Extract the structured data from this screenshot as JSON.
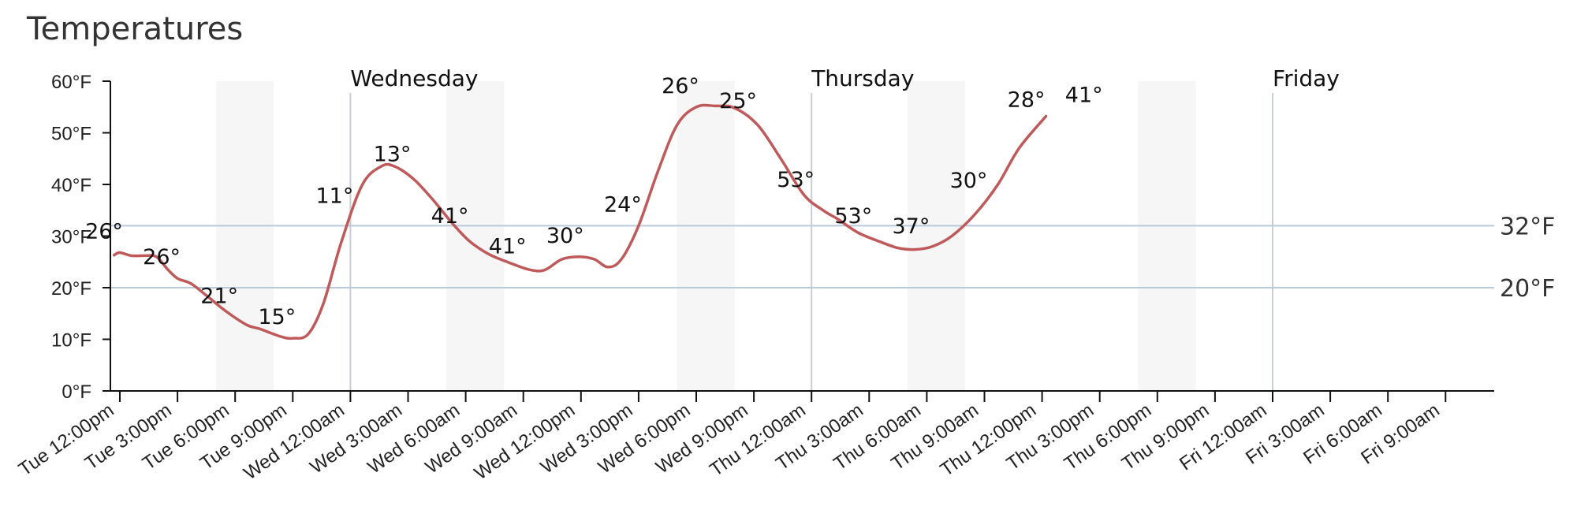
{
  "chart_data": {
    "type": "line",
    "title": "Temperatures",
    "xlabel": "",
    "ylabel": "",
    "x_start": "Tue 12:00pm",
    "x_step_hours": 3,
    "categories": [
      "Tue 12:00pm",
      "Tue 3:00pm",
      "Tue 6:00pm",
      "Tue 9:00pm",
      "Wed 12:00am",
      "Wed 3:00am",
      "Wed 6:00am",
      "Wed 9:00am",
      "Wed 12:00pm",
      "Wed 3:00pm",
      "Wed 6:00pm",
      "Wed 9:00pm",
      "Thu 12:00am",
      "Thu 3:00am",
      "Thu 6:00am",
      "Thu 9:00am",
      "Thu 12:00pm",
      "Thu 3:00pm",
      "Thu 6:00pm",
      "Thu 9:00pm",
      "Fri 12:00am",
      "Fri 3:00am",
      "Fri 6:00am",
      "Fri 9:00am"
    ],
    "y_ticks": [
      "0°F",
      "10°F",
      "20°F",
      "30°F",
      "40°F",
      "50°F",
      "60°F"
    ],
    "ylim": [
      0,
      60
    ],
    "series": [
      {
        "name": "",
        "color": "#c0595a",
        "curve": [
          [
            11.7,
            26.3
          ],
          [
            12.0,
            26.8
          ],
          [
            12.6,
            26.2
          ],
          [
            13.3,
            26.2
          ],
          [
            13.9,
            26.0
          ],
          [
            14.5,
            23.5
          ],
          [
            15.0,
            21.8
          ],
          [
            15.7,
            20.8
          ],
          [
            16.5,
            18.5
          ],
          [
            17.5,
            15.5
          ],
          [
            18.6,
            12.8
          ],
          [
            19.3,
            12.0
          ],
          [
            20.4,
            10.5
          ],
          [
            21.0,
            10.2
          ],
          [
            21.8,
            11.0
          ],
          [
            22.6,
            17.0
          ],
          [
            23.5,
            28.5
          ],
          [
            24.6,
            39.8
          ],
          [
            25.6,
            43.5
          ],
          [
            26.3,
            43.5
          ],
          [
            27.3,
            41.0
          ],
          [
            28.3,
            37.0
          ],
          [
            29.3,
            32.5
          ],
          [
            30.2,
            29.0
          ],
          [
            31.2,
            26.5
          ],
          [
            32.3,
            24.8
          ],
          [
            33.3,
            23.5
          ],
          [
            34.1,
            23.4
          ],
          [
            35.0,
            25.5
          ],
          [
            35.9,
            26.0
          ],
          [
            36.7,
            25.5
          ],
          [
            37.4,
            24.0
          ],
          [
            38.1,
            25.5
          ],
          [
            39.0,
            32.0
          ],
          [
            40.0,
            42.5
          ],
          [
            41.0,
            51.5
          ],
          [
            42.0,
            55.0
          ],
          [
            43.0,
            55.2
          ],
          [
            44.0,
            54.8
          ],
          [
            45.2,
            51.5
          ],
          [
            46.4,
            45.0
          ],
          [
            47.6,
            38.0
          ],
          [
            48.6,
            35.0
          ],
          [
            49.4,
            33.2
          ],
          [
            50.4,
            30.7
          ],
          [
            51.5,
            29.0
          ],
          [
            52.5,
            27.7
          ],
          [
            53.4,
            27.4
          ],
          [
            54.3,
            28.0
          ],
          [
            55.3,
            30.0
          ],
          [
            56.5,
            34.2
          ],
          [
            57.7,
            40.0
          ],
          [
            58.8,
            47.0
          ],
          [
            60.2,
            53.2
          ]
        ],
        "point_labels": [
          {
            "x": 12,
            "label": "26°"
          },
          {
            "x": 15,
            "label": "26°"
          },
          {
            "x": 18,
            "label": "21°"
          },
          {
            "x": 21,
            "label": "15°"
          },
          {
            "x": 24,
            "label": "11°"
          },
          {
            "x": 27,
            "label": "13°"
          },
          {
            "x": 30,
            "label": "41°"
          },
          {
            "x": 33,
            "label": "41°"
          },
          {
            "x": 36,
            "label": "30°"
          },
          {
            "x": 39,
            "label": "24°"
          },
          {
            "x": 42,
            "label": "26°"
          },
          {
            "x": 45,
            "label": "25°"
          },
          {
            "x": 48,
            "label": "53°"
          },
          {
            "x": 51,
            "label": "53°"
          },
          {
            "x": 54,
            "label": "37°"
          },
          {
            "x": 57,
            "label": "30°"
          },
          {
            "x": 60,
            "label": "28°"
          },
          {
            "x": 63,
            "label": "41°"
          }
        ]
      }
    ],
    "reference_lines": [
      {
        "y": 32,
        "label": "32°F"
      },
      {
        "y": 20,
        "label": "20°F"
      }
    ],
    "day_markers": [
      {
        "x": 24,
        "label": "Wednesday"
      },
      {
        "x": 48,
        "label": "Thursday"
      },
      {
        "x": 72,
        "label": "Friday"
      }
    ],
    "night_bands": [
      [
        17,
        20
      ],
      [
        29,
        32
      ],
      [
        41,
        44
      ],
      [
        53,
        56
      ],
      [
        65,
        68
      ]
    ],
    "grid": false,
    "legend": "none"
  }
}
